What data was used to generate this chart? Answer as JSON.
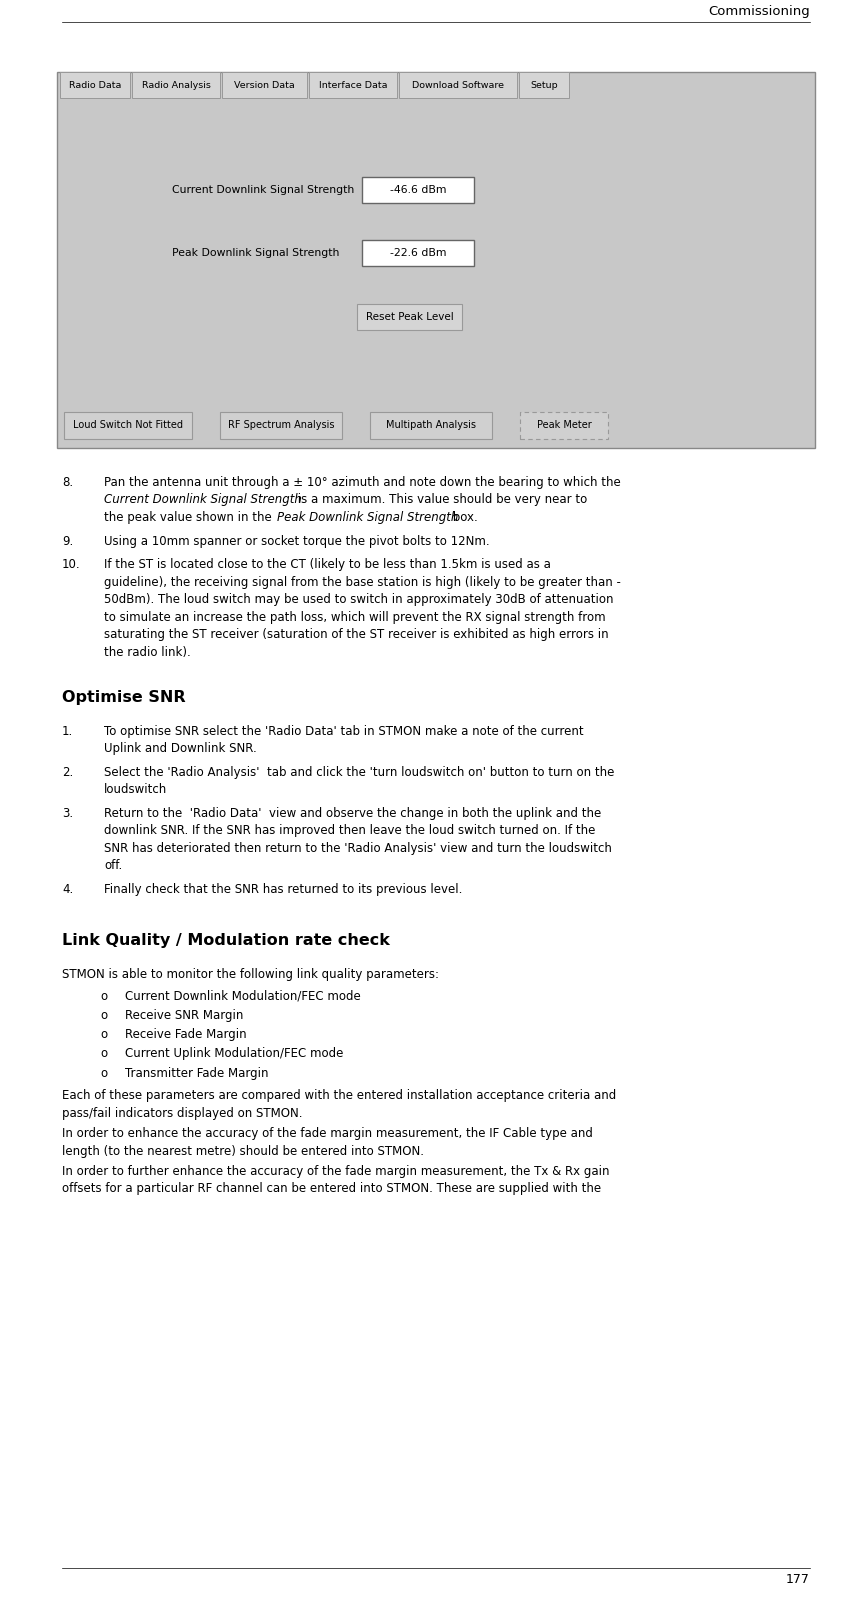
{
  "page_width": 8.65,
  "page_height": 15.98,
  "bg_color": "#ffffff",
  "header_text": "Commissioning",
  "footer_text": "177",
  "ui": {
    "tabs": [
      "Radio Data",
      "Radio Analysis",
      "Version Data",
      "Interface Data",
      "Download Software",
      "Setup"
    ],
    "fields": [
      {
        "label": "Current Downlink Signal Strength",
        "value": "-46.6 dBm"
      },
      {
        "label": "Peak Downlink Signal Strength",
        "value": "-22.6 dBm"
      }
    ],
    "reset_button": "Reset Peak Level",
    "bottom_buttons": [
      "Loud Switch Not Fitted",
      "RF Spectrum Analysis",
      "Multipath Analysis",
      "Peak Meter"
    ]
  },
  "item8_lines": [
    [
      "normal",
      "Pan the antenna unit through a ± 10° azimuth and note down the bearing to which the"
    ],
    [
      "italic",
      "Current Downlink Signal Strength",
      "normal",
      " is a maximum. This value should be very near to"
    ],
    [
      "normal",
      "the peak value shown in the  ",
      "italic",
      "Peak Downlink Signal Strength",
      "normal",
      " box."
    ]
  ],
  "item9": "Using a 10mm spanner or socket torque the pivot bolts to 12Nm.",
  "item10_lines": [
    "If the ST is located close to the CT (likely to be less than 1.5km is used as a",
    "guideline), the receiving signal from the base station is high (likely to be greater than -",
    "50dBm). The loud switch may be used to switch in approximately 30dB of attenuation",
    "to simulate an increase the path loss, which will prevent the RX signal strength from",
    "saturating the ST receiver (saturation of the ST receiver is exhibited as high errors in",
    "the radio link)."
  ],
  "snr_title": "Optimise SNR",
  "snr_items": [
    [
      "To optimise SNR select the 'Radio Data' tab in STMON make a note of the current",
      "Uplink and Downlink SNR."
    ],
    [
      "Select the 'Radio Analysis'  tab and click the 'turn loudswitch on' button to turn on the",
      "loudswitch"
    ],
    [
      "Return to the  'Radio Data'  view and observe the change in both the uplink and the",
      "downlink SNR. If the SNR has improved then leave the loud switch turned on. If the",
      "SNR has deteriorated then return to the 'Radio Analysis' view and turn the loudswitch",
      "off."
    ],
    [
      "Finally check that the SNR has returned to its previous level."
    ]
  ],
  "lq_title": "Link Quality / Modulation rate check",
  "lq_intro": "STMON is able to monitor the following link quality parameters:",
  "lq_bullets": [
    "Current Downlink Modulation/FEC mode",
    "Receive SNR Margin",
    "Receive Fade Margin",
    "Current Uplink Modulation/FEC mode",
    "Transmitter Fade Margin"
  ],
  "lq_paras": [
    [
      "Each of these parameters are compared with the entered installation acceptance criteria and",
      "pass/fail indicators displayed on STMON."
    ],
    [
      "In order to enhance the accuracy of the fade margin measurement, the IF Cable type and",
      "length (to the nearest metre) should be entered into STMON."
    ],
    [
      "In order to further enhance the accuracy of the fade margin measurement, the Tx & Rx gain",
      "offsets for a particular RF channel can be entered into STMON. These are supplied with the"
    ]
  ]
}
